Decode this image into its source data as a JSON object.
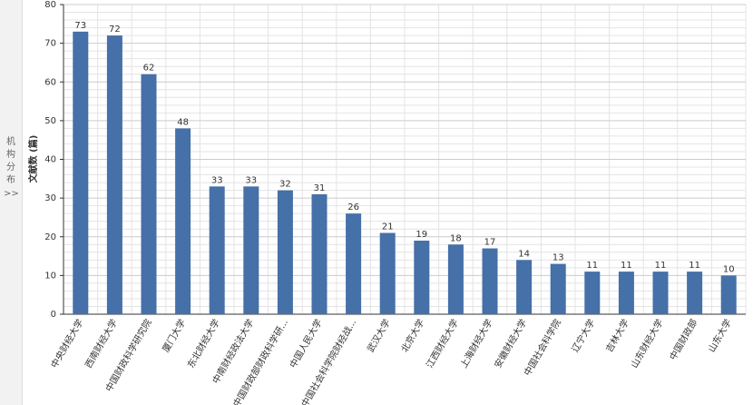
{
  "sidebar": {
    "label": "机构分布",
    "toggle": ">>"
  },
  "chart_data": {
    "type": "bar",
    "y_label": "文献数 (篇)",
    "categories": [
      "中央财经大学",
      "西南财经大学",
      "中国财政科学研究院",
      "厦门大学",
      "东北财经大学",
      "中南财经政法大学",
      "中国财政部财政科学研...",
      "中国人民大学",
      "中国社会科学院财经战...",
      "武汉大学",
      "北京大学",
      "江西财经大学",
      "上海财经大学",
      "安徽财经大学",
      "中国社会科学院",
      "辽宁大学",
      "吉林大学",
      "山东财经大学",
      "中国财政部",
      "山东大学"
    ],
    "values": [
      73,
      72,
      62,
      48,
      33,
      33,
      32,
      31,
      26,
      21,
      19,
      18,
      17,
      14,
      13,
      11,
      11,
      11,
      11,
      10
    ],
    "color": "#4570a8",
    "ylim": [
      0,
      80
    ],
    "yticks": [
      0,
      10,
      20,
      30,
      40,
      50,
      60,
      70,
      80
    ],
    "grid": true
  }
}
